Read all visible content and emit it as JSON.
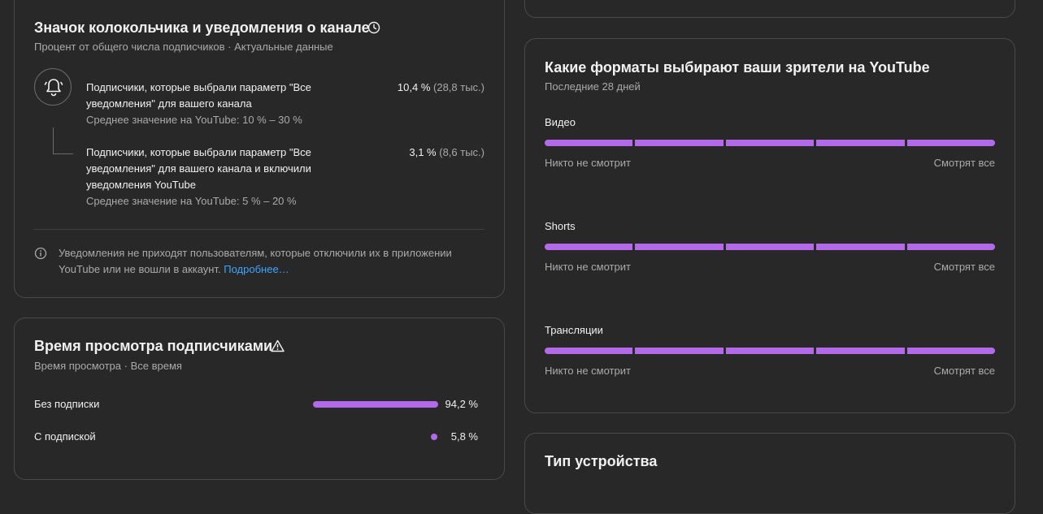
{
  "bell_card": {
    "title": "Значок колокольчика и уведомления о канале",
    "subtitle": "Процент от общего числа подписчиков · Актуальные данные",
    "rows": [
      {
        "label": "Подписчики, которые выбрали параметр \"Все уведомления\" для вашего канала",
        "average": "Среднее значение на YouTube: 10 % – 30 %",
        "percent": "10,4 %",
        "count": "(28,8 тыс.)"
      },
      {
        "label": "Подписчики, которые выбрали параметр \"Все уведомления\" для вашего канала и включили уведомления YouTube",
        "average": "Среднее значение на YouTube: 5 % – 20 %",
        "percent": "3,1 %",
        "count": "(8,6 тыс.)"
      }
    ],
    "note": "Уведомления не приходят пользователям, которые отключили их в приложении YouTube или не вошли в аккаунт.",
    "note_link": "Подробнее…"
  },
  "watch_card": {
    "title": "Время просмотра подписчиками",
    "subtitle": "Время просмотра · Все время",
    "rows": [
      {
        "label": "Без подписки",
        "value": "94,2 %",
        "fraction": 0.942
      },
      {
        "label": "С подпиской",
        "value": "5,8 %",
        "fraction": 0.058
      }
    ]
  },
  "formats_card": {
    "title": "Какие форматы выбирают ваши зрители на YouTube",
    "subtitle": "Последние 28 дней",
    "formats": [
      {
        "label": "Видео",
        "low": "Никто не смотрит",
        "high": "Смотрят все"
      },
      {
        "label": "Shorts",
        "low": "Никто не смотрит",
        "high": "Смотрят все"
      },
      {
        "label": "Трансляции",
        "low": "Никто не смотрит",
        "high": "Смотрят все"
      }
    ]
  },
  "device_card": {
    "title": "Тип устройства"
  },
  "colors": {
    "accent": "#b26ae8",
    "link": "#3ea6ff",
    "background": "#282828"
  },
  "icons": [
    "clock-icon",
    "bell-icon",
    "info-icon",
    "warning-icon"
  ]
}
